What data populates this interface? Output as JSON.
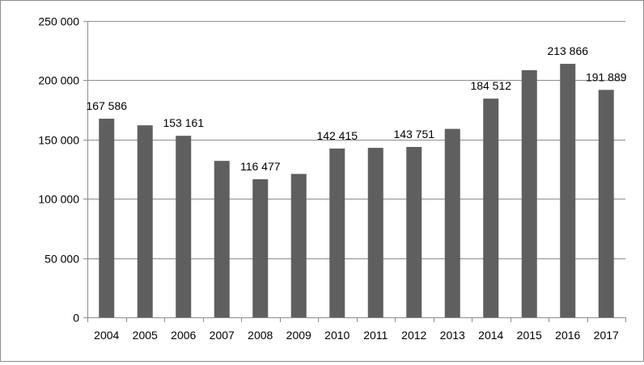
{
  "chart_data": {
    "type": "bar",
    "title": "",
    "xlabel": "",
    "ylabel": "",
    "categories": [
      "2004",
      "2005",
      "2006",
      "2007",
      "2008",
      "2009",
      "2010",
      "2011",
      "2012",
      "2013",
      "2014",
      "2015",
      "2016",
      "2017"
    ],
    "values": [
      167586,
      162000,
      153161,
      132000,
      116477,
      121000,
      142415,
      143000,
      143751,
      159000,
      184512,
      208500,
      213866,
      191889
    ],
    "data_labels": [
      "167 586",
      "",
      "153 161",
      "",
      "116 477",
      "",
      "142 415",
      "",
      "143 751",
      "",
      "184 512",
      "",
      "213 866",
      "191 889"
    ],
    "ylim": [
      0,
      250000
    ],
    "yticks": [
      0,
      50000,
      100000,
      150000,
      200000,
      250000
    ],
    "ytick_labels": [
      "0",
      "50 000",
      "100 000",
      "150 000",
      "200 000",
      "250 000"
    ],
    "grid": true,
    "legend": "none",
    "bar_color": "#5f5f5f",
    "grid_color": "#8c8c8c"
  }
}
